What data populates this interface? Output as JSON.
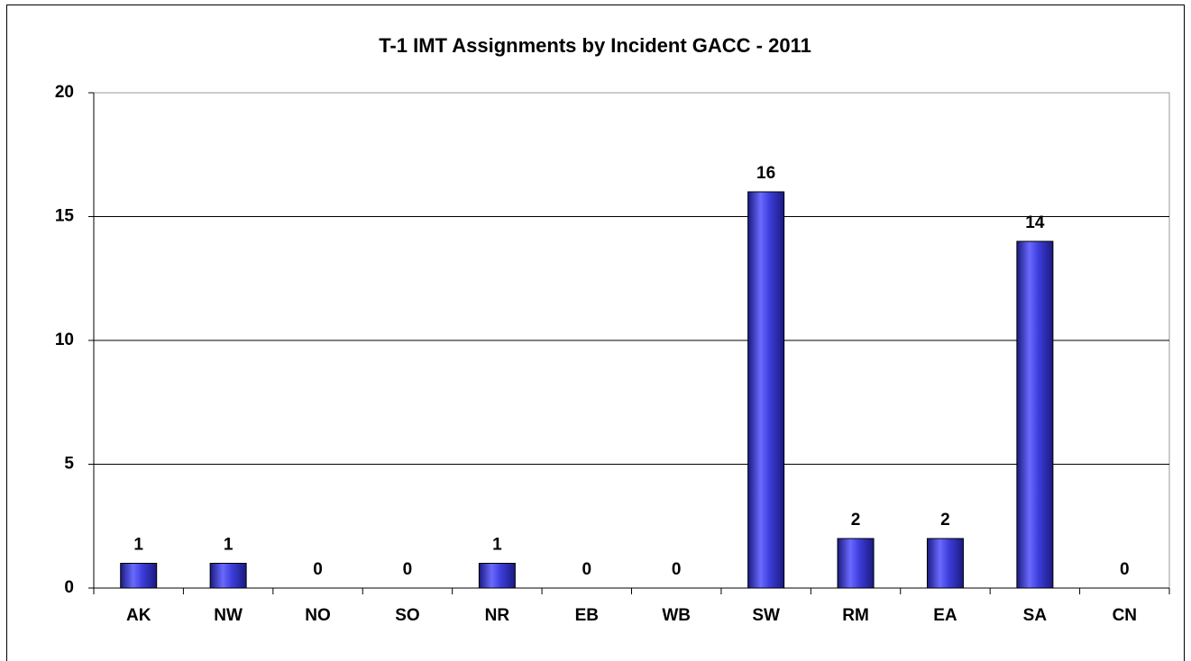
{
  "chart_data": {
    "type": "bar",
    "title": "T-1 IMT Assignments by Incident GACC - 2011",
    "categories": [
      "AK",
      "NW",
      "NO",
      "SO",
      "NR",
      "EB",
      "WB",
      "SW",
      "RM",
      "EA",
      "SA",
      "CN"
    ],
    "values": [
      1,
      1,
      0,
      0,
      1,
      0,
      0,
      16,
      2,
      2,
      14,
      0
    ],
    "color": "#3333cc",
    "ylim": [
      0,
      20
    ],
    "yticks": [
      0,
      5,
      10,
      15,
      20
    ],
    "grid": true
  }
}
